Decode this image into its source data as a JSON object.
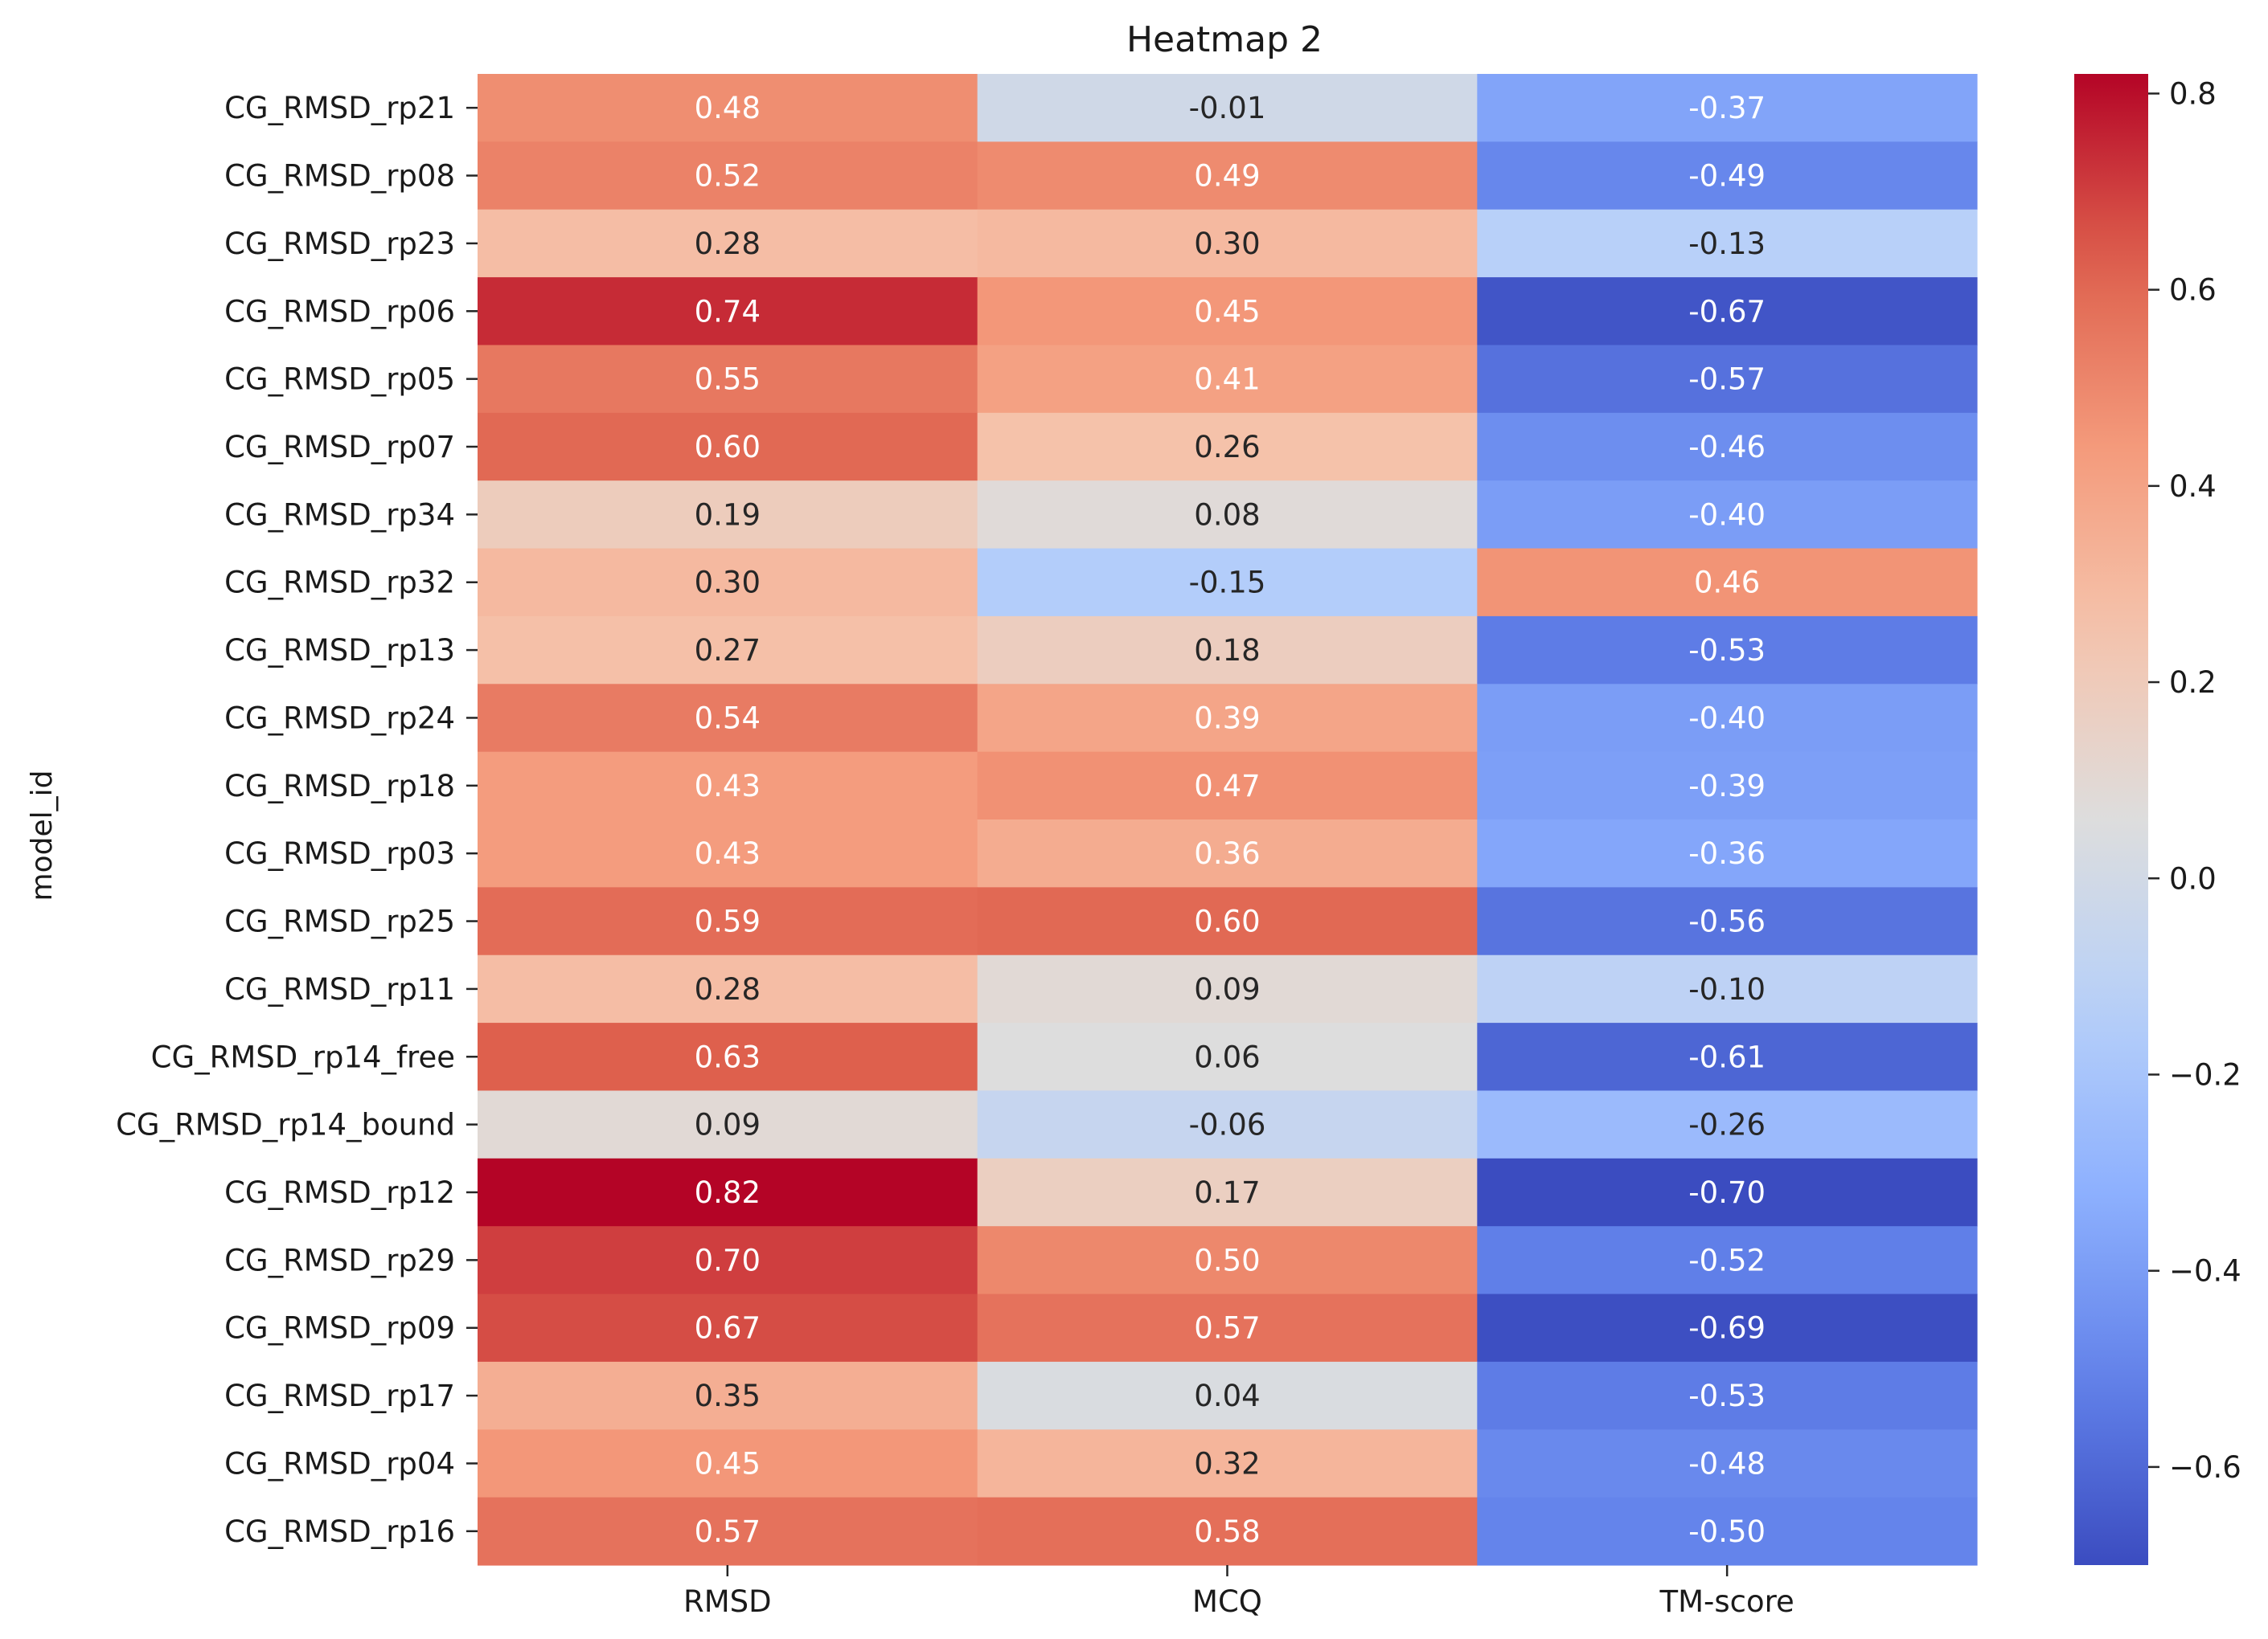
{
  "chart_data": {
    "type": "heatmap",
    "title": "Heatmap 2",
    "xlabel": "",
    "ylabel": "model_id",
    "columns": [
      "RMSD",
      "MCQ",
      "TM-score"
    ],
    "rows": [
      "CG_RMSD_rp21",
      "CG_RMSD_rp08",
      "CG_RMSD_rp23",
      "CG_RMSD_rp06",
      "CG_RMSD_rp05",
      "CG_RMSD_rp07",
      "CG_RMSD_rp34",
      "CG_RMSD_rp32",
      "CG_RMSD_rp13",
      "CG_RMSD_rp24",
      "CG_RMSD_rp18",
      "CG_RMSD_rp03",
      "CG_RMSD_rp25",
      "CG_RMSD_rp11",
      "CG_RMSD_rp14_free",
      "CG_RMSD_rp14_bound",
      "CG_RMSD_rp12",
      "CG_RMSD_rp29",
      "CG_RMSD_rp09",
      "CG_RMSD_rp17",
      "CG_RMSD_rp04",
      "CG_RMSD_rp16"
    ],
    "values": [
      [
        0.48,
        -0.01,
        -0.37
      ],
      [
        0.52,
        0.49,
        -0.49
      ],
      [
        0.28,
        0.3,
        -0.13
      ],
      [
        0.74,
        0.45,
        -0.67
      ],
      [
        0.55,
        0.41,
        -0.57
      ],
      [
        0.6,
        0.26,
        -0.46
      ],
      [
        0.19,
        0.08,
        -0.4
      ],
      [
        0.3,
        -0.15,
        0.46
      ],
      [
        0.27,
        0.18,
        -0.53
      ],
      [
        0.54,
        0.39,
        -0.4
      ],
      [
        0.43,
        0.47,
        -0.39
      ],
      [
        0.43,
        0.36,
        -0.36
      ],
      [
        0.59,
        0.6,
        -0.56
      ],
      [
        0.28,
        0.09,
        -0.1
      ],
      [
        0.63,
        0.06,
        -0.61
      ],
      [
        0.09,
        -0.06,
        -0.26
      ],
      [
        0.82,
        0.17,
        -0.7
      ],
      [
        0.7,
        0.5,
        -0.52
      ],
      [
        0.67,
        0.57,
        -0.69
      ],
      [
        0.35,
        0.04,
        -0.53
      ],
      [
        0.45,
        0.32,
        -0.48
      ],
      [
        0.57,
        0.58,
        -0.5
      ]
    ],
    "colormap": "coolwarm",
    "vmin": -0.7,
    "vmax": 0.82,
    "colorbar_ticks": [
      0.8,
      0.6,
      0.4,
      0.2,
      0.0,
      -0.2,
      -0.4,
      -0.6
    ],
    "colorbar_tick_labels": [
      "0.8",
      "0.6",
      "0.4",
      "0.2",
      "0.0",
      "−0.2",
      "−0.4",
      "−0.6"
    ],
    "annotations": true
  }
}
